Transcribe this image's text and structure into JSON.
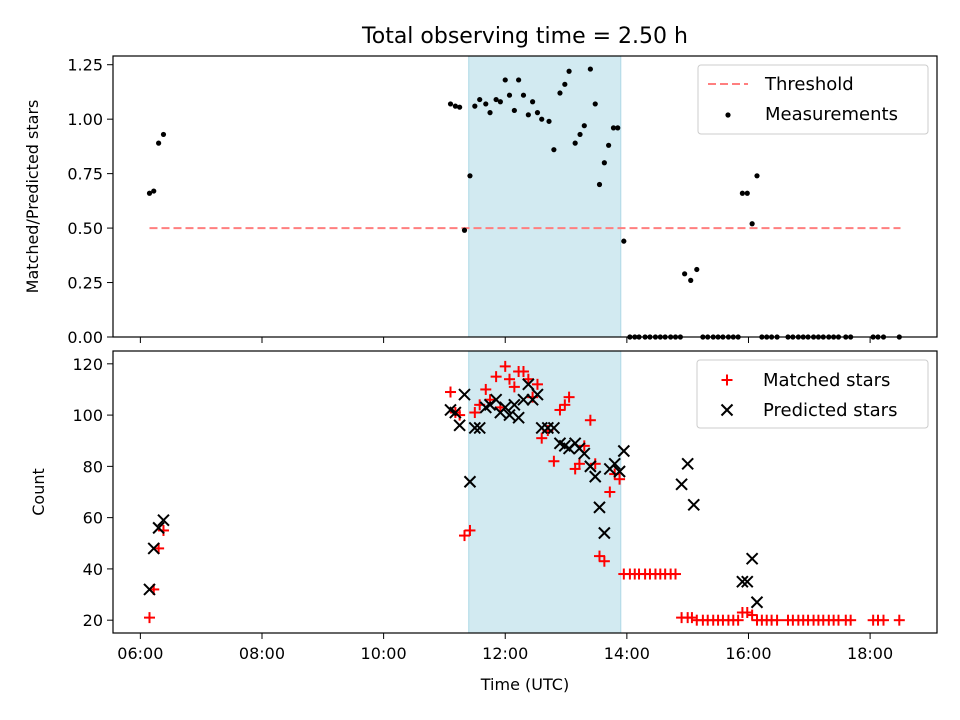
{
  "chart_data": {
    "type": "scatter",
    "title": "Total observing time = 2.50 h",
    "xlabel": "Time (UTC)",
    "xlim": [
      5.55,
      19.1
    ],
    "xticks": [
      6,
      8,
      10,
      12,
      14,
      16,
      18
    ],
    "xticklabels": [
      "06:00",
      "08:00",
      "10:00",
      "12:00",
      "14:00",
      "16:00",
      "18:00"
    ],
    "highlight_span": {
      "x_start": 11.4,
      "x_end": 13.9,
      "color": "#add8e6"
    },
    "panels": [
      {
        "name": "ratio",
        "ylabel": "Matched/Predicted stars",
        "ylim": [
          0,
          1.29
        ],
        "yticks": [
          0.0,
          0.25,
          0.5,
          0.75,
          1.0,
          1.25
        ],
        "yticklabels": [
          "0.00",
          "0.25",
          "0.50",
          "0.75",
          "1.00",
          "1.25"
        ],
        "legend": "top-right",
        "threshold": {
          "name": "Threshold",
          "value": 0.5,
          "x_start": 6.15,
          "x_end": 18.5,
          "color": "#ff7f7f"
        },
        "series": [
          {
            "name": "Measurements",
            "marker": "dot",
            "color": "#000000",
            "points": [
              [
                6.15,
                0.66
              ],
              [
                6.22,
                0.67
              ],
              [
                6.3,
                0.89
              ],
              [
                6.38,
                0.93
              ],
              [
                11.1,
                1.07
              ],
              [
                11.18,
                1.06
              ],
              [
                11.25,
                1.055
              ],
              [
                11.33,
                0.49
              ],
              [
                11.42,
                0.74
              ],
              [
                11.5,
                1.06
              ],
              [
                11.58,
                1.09
              ],
              [
                11.68,
                1.07
              ],
              [
                11.75,
                1.03
              ],
              [
                11.85,
                1.09
              ],
              [
                11.92,
                1.08
              ],
              [
                12.0,
                1.18
              ],
              [
                12.07,
                1.11
              ],
              [
                12.15,
                1.04
              ],
              [
                12.22,
                1.18
              ],
              [
                12.3,
                1.11
              ],
              [
                12.38,
                1.02
              ],
              [
                12.45,
                1.08
              ],
              [
                12.53,
                1.03
              ],
              [
                12.6,
                1.0
              ],
              [
                12.72,
                0.99
              ],
              [
                12.8,
                0.86
              ],
              [
                12.9,
                1.12
              ],
              [
                12.98,
                1.16
              ],
              [
                13.05,
                1.22
              ],
              [
                13.15,
                0.89
              ],
              [
                13.23,
                0.93
              ],
              [
                13.3,
                0.97
              ],
              [
                13.4,
                1.23
              ],
              [
                13.48,
                1.07
              ],
              [
                13.55,
                0.7
              ],
              [
                13.63,
                0.8
              ],
              [
                13.7,
                0.88
              ],
              [
                13.78,
                0.96
              ],
              [
                13.85,
                0.96
              ],
              [
                13.95,
                0.44
              ],
              [
                14.05,
                0.0
              ],
              [
                14.13,
                0.0
              ],
              [
                14.2,
                0.0
              ],
              [
                14.3,
                0.0
              ],
              [
                14.38,
                0.0
              ],
              [
                14.47,
                0.0
              ],
              [
                14.55,
                0.0
              ],
              [
                14.63,
                0.0
              ],
              [
                14.72,
                0.0
              ],
              [
                14.8,
                0.0
              ],
              [
                14.88,
                0.0
              ],
              [
                14.95,
                0.29
              ],
              [
                15.05,
                0.26
              ],
              [
                15.15,
                0.31
              ],
              [
                15.25,
                0.0
              ],
              [
                15.33,
                0.0
              ],
              [
                15.42,
                0.0
              ],
              [
                15.5,
                0.0
              ],
              [
                15.58,
                0.0
              ],
              [
                15.67,
                0.0
              ],
              [
                15.75,
                0.0
              ],
              [
                15.83,
                0.0
              ],
              [
                15.9,
                0.66
              ],
              [
                15.98,
                0.66
              ],
              [
                16.06,
                0.52
              ],
              [
                16.14,
                0.74
              ],
              [
                16.22,
                0.0
              ],
              [
                16.3,
                0.0
              ],
              [
                16.38,
                0.0
              ],
              [
                16.47,
                0.0
              ],
              [
                16.65,
                0.0
              ],
              [
                16.73,
                0.0
              ],
              [
                16.82,
                0.0
              ],
              [
                16.9,
                0.0
              ],
              [
                16.98,
                0.0
              ],
              [
                17.07,
                0.0
              ],
              [
                17.15,
                0.0
              ],
              [
                17.23,
                0.0
              ],
              [
                17.32,
                0.0
              ],
              [
                17.4,
                0.0
              ],
              [
                17.48,
                0.0
              ],
              [
                17.6,
                0.0
              ],
              [
                17.68,
                0.0
              ],
              [
                18.05,
                0.0
              ],
              [
                18.13,
                0.0
              ],
              [
                18.22,
                0.0
              ],
              [
                18.48,
                0.0
              ]
            ]
          }
        ]
      },
      {
        "name": "count",
        "ylabel": "Count",
        "ylim": [
          15,
          125
        ],
        "yticks": [
          20,
          40,
          60,
          80,
          100,
          120
        ],
        "yticklabels": [
          "20",
          "40",
          "60",
          "80",
          "100",
          "120"
        ],
        "legend": "top-right",
        "series": [
          {
            "name": "Matched stars",
            "marker": "plus",
            "color": "#ff0000",
            "points": [
              [
                6.15,
                21
              ],
              [
                6.22,
                32
              ],
              [
                6.3,
                48
              ],
              [
                6.38,
                55
              ],
              [
                11.1,
                109
              ],
              [
                11.18,
                101
              ],
              [
                11.25,
                100
              ],
              [
                11.33,
                53
              ],
              [
                11.42,
                55
              ],
              [
                11.5,
                101
              ],
              [
                11.58,
                104
              ],
              [
                11.68,
                110
              ],
              [
                11.75,
                106
              ],
              [
                11.85,
                115
              ],
              [
                11.92,
                103
              ],
              [
                12.0,
                119
              ],
              [
                12.07,
                114
              ],
              [
                12.15,
                111
              ],
              [
                12.22,
                117
              ],
              [
                12.3,
                117
              ],
              [
                12.38,
                114
              ],
              [
                12.45,
                107
              ],
              [
                12.53,
                112
              ],
              [
                12.6,
                91
              ],
              [
                12.7,
                94
              ],
              [
                12.8,
                82
              ],
              [
                12.9,
                102
              ],
              [
                12.98,
                104
              ],
              [
                13.05,
                107
              ],
              [
                13.15,
                79
              ],
              [
                13.22,
                81
              ],
              [
                13.3,
                88
              ],
              [
                13.4,
                98
              ],
              [
                13.48,
                81
              ],
              [
                13.55,
                45
              ],
              [
                13.63,
                43
              ],
              [
                13.72,
                70
              ],
              [
                13.8,
                77
              ],
              [
                13.88,
                75
              ],
              [
                13.95,
                38
              ],
              [
                14.05,
                38
              ],
              [
                14.13,
                38
              ],
              [
                14.2,
                38
              ],
              [
                14.3,
                38
              ],
              [
                14.38,
                38
              ],
              [
                14.47,
                38
              ],
              [
                14.55,
                38
              ],
              [
                14.63,
                38
              ],
              [
                14.72,
                38
              ],
              [
                14.8,
                38
              ],
              [
                14.9,
                21
              ],
              [
                15.0,
                21
              ],
              [
                15.07,
                21
              ],
              [
                15.15,
                20
              ],
              [
                15.25,
                20
              ],
              [
                15.33,
                20
              ],
              [
                15.42,
                20
              ],
              [
                15.5,
                20
              ],
              [
                15.58,
                20
              ],
              [
                15.67,
                20
              ],
              [
                15.75,
                20
              ],
              [
                15.83,
                20
              ],
              [
                15.9,
                23
              ],
              [
                15.98,
                23
              ],
              [
                16.06,
                22
              ],
              [
                16.14,
                20
              ],
              [
                16.22,
                20
              ],
              [
                16.3,
                20
              ],
              [
                16.38,
                20
              ],
              [
                16.47,
                20
              ],
              [
                16.65,
                20
              ],
              [
                16.73,
                20
              ],
              [
                16.82,
                20
              ],
              [
                16.9,
                20
              ],
              [
                16.98,
                20
              ],
              [
                17.07,
                20
              ],
              [
                17.15,
                20
              ],
              [
                17.23,
                20
              ],
              [
                17.32,
                20
              ],
              [
                17.4,
                20
              ],
              [
                17.48,
                20
              ],
              [
                17.6,
                20
              ],
              [
                17.68,
                20
              ],
              [
                18.05,
                20
              ],
              [
                18.13,
                20
              ],
              [
                18.22,
                20
              ],
              [
                18.48,
                20
              ]
            ]
          },
          {
            "name": "Predicted stars",
            "marker": "x",
            "color": "#000000",
            "points": [
              [
                6.15,
                32
              ],
              [
                6.22,
                48
              ],
              [
                6.3,
                56
              ],
              [
                6.38,
                59
              ],
              [
                11.1,
                102
              ],
              [
                11.18,
                101
              ],
              [
                11.25,
                96
              ],
              [
                11.33,
                108
              ],
              [
                11.42,
                74
              ],
              [
                11.5,
                95
              ],
              [
                11.58,
                95
              ],
              [
                11.68,
                103
              ],
              [
                11.75,
                104
              ],
              [
                11.85,
                106
              ],
              [
                11.92,
                101
              ],
              [
                12.0,
                103
              ],
              [
                12.07,
                100
              ],
              [
                12.15,
                104
              ],
              [
                12.22,
                99
              ],
              [
                12.3,
                106
              ],
              [
                12.38,
                112
              ],
              [
                12.45,
                106
              ],
              [
                12.53,
                108
              ],
              [
                12.6,
                95
              ],
              [
                12.7,
                95
              ],
              [
                12.8,
                95
              ],
              [
                12.9,
                89
              ],
              [
                12.98,
                88
              ],
              [
                13.05,
                87
              ],
              [
                13.15,
                89
              ],
              [
                13.22,
                87
              ],
              [
                13.3,
                85
              ],
              [
                13.4,
                80
              ],
              [
                13.48,
                76
              ],
              [
                13.55,
                64
              ],
              [
                13.63,
                54
              ],
              [
                13.72,
                79
              ],
              [
                13.8,
                81
              ],
              [
                13.88,
                78
              ],
              [
                13.95,
                86
              ],
              [
                14.9,
                73
              ],
              [
                15.0,
                81
              ],
              [
                15.1,
                65
              ],
              [
                15.9,
                35
              ],
              [
                15.98,
                35
              ],
              [
                16.06,
                44
              ],
              [
                16.14,
                27
              ]
            ]
          }
        ]
      }
    ]
  }
}
